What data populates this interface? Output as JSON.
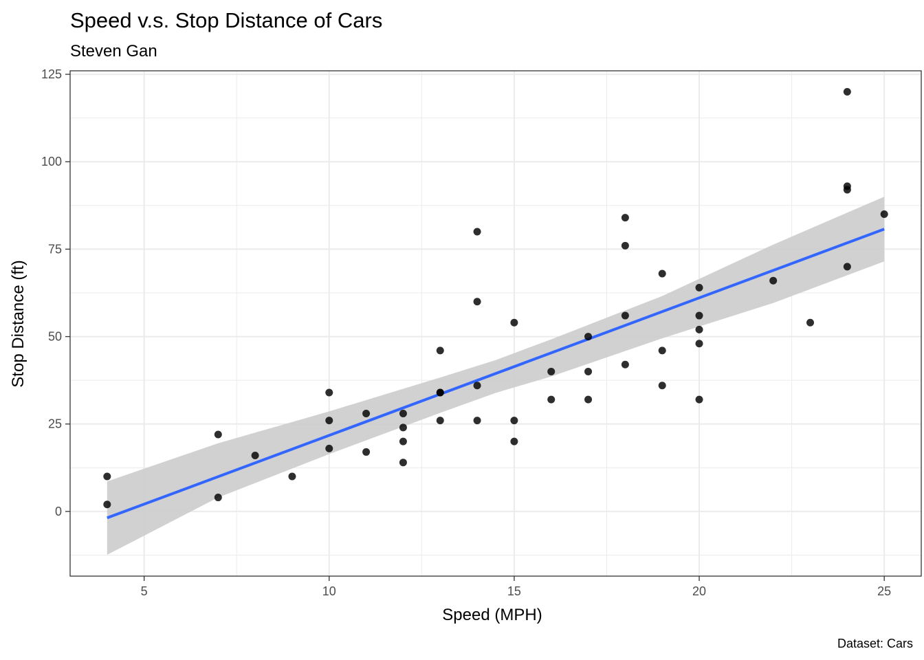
{
  "chart_data": {
    "type": "scatter",
    "title": "Speed v.s. Stop Distance of Cars",
    "subtitle": "Steven Gan",
    "caption": "Dataset: Cars",
    "xlabel": "Speed (MPH)",
    "ylabel": "Stop Distance (ft)",
    "xlim": [
      3,
      26
    ],
    "ylim": [
      -18.5,
      126
    ],
    "x_ticks": [
      5,
      10,
      15,
      20,
      25
    ],
    "y_ticks": [
      0,
      25,
      50,
      75,
      100,
      125
    ],
    "x_tick_labels": [
      "5",
      "10",
      "15",
      "20",
      "25"
    ],
    "y_tick_labels": [
      "0",
      "25",
      "50",
      "75",
      "100",
      "125"
    ],
    "grid": true,
    "colors": {
      "points": "#000000",
      "fit_line": "#3366ff",
      "confidence_band": "#cccccc",
      "grid": "#ebebeb",
      "panel_border": "#333333"
    },
    "points": [
      {
        "x": 4,
        "y": 2
      },
      {
        "x": 4,
        "y": 10
      },
      {
        "x": 7,
        "y": 4
      },
      {
        "x": 7,
        "y": 22
      },
      {
        "x": 8,
        "y": 16
      },
      {
        "x": 9,
        "y": 10
      },
      {
        "x": 10,
        "y": 18
      },
      {
        "x": 10,
        "y": 26
      },
      {
        "x": 10,
        "y": 34
      },
      {
        "x": 11,
        "y": 17
      },
      {
        "x": 11,
        "y": 28
      },
      {
        "x": 12,
        "y": 14
      },
      {
        "x": 12,
        "y": 20
      },
      {
        "x": 12,
        "y": 24
      },
      {
        "x": 12,
        "y": 28
      },
      {
        "x": 13,
        "y": 26
      },
      {
        "x": 13,
        "y": 34
      },
      {
        "x": 13,
        "y": 34
      },
      {
        "x": 13,
        "y": 46
      },
      {
        "x": 14,
        "y": 26
      },
      {
        "x": 14,
        "y": 36
      },
      {
        "x": 14,
        "y": 60
      },
      {
        "x": 14,
        "y": 80
      },
      {
        "x": 15,
        "y": 20
      },
      {
        "x": 15,
        "y": 26
      },
      {
        "x": 15,
        "y": 54
      },
      {
        "x": 16,
        "y": 32
      },
      {
        "x": 16,
        "y": 40
      },
      {
        "x": 17,
        "y": 32
      },
      {
        "x": 17,
        "y": 40
      },
      {
        "x": 17,
        "y": 50
      },
      {
        "x": 18,
        "y": 42
      },
      {
        "x": 18,
        "y": 56
      },
      {
        "x": 18,
        "y": 76
      },
      {
        "x": 18,
        "y": 84
      },
      {
        "x": 19,
        "y": 36
      },
      {
        "x": 19,
        "y": 46
      },
      {
        "x": 19,
        "y": 68
      },
      {
        "x": 20,
        "y": 32
      },
      {
        "x": 20,
        "y": 48
      },
      {
        "x": 20,
        "y": 52
      },
      {
        "x": 20,
        "y": 56
      },
      {
        "x": 20,
        "y": 64
      },
      {
        "x": 22,
        "y": 66
      },
      {
        "x": 23,
        "y": 54
      },
      {
        "x": 24,
        "y": 70
      },
      {
        "x": 24,
        "y": 92
      },
      {
        "x": 24,
        "y": 93
      },
      {
        "x": 24,
        "y": 120
      },
      {
        "x": 25,
        "y": 85
      }
    ],
    "fit_line": {
      "method": "lm",
      "x": [
        4,
        25
      ],
      "y": [
        -1.85,
        80.73
      ],
      "band": {
        "x": [
          4,
          7,
          10,
          13,
          14.5,
          16,
          19,
          22,
          25
        ],
        "lower": [
          -12.4,
          4.0,
          16.4,
          28.2,
          33.9,
          38.6,
          49.5,
          59.6,
          71.5
        ],
        "upper": [
          8.6,
          19.5,
          28.6,
          38.3,
          43.3,
          49.2,
          61.6,
          76.3,
          90.0
        ]
      }
    }
  }
}
